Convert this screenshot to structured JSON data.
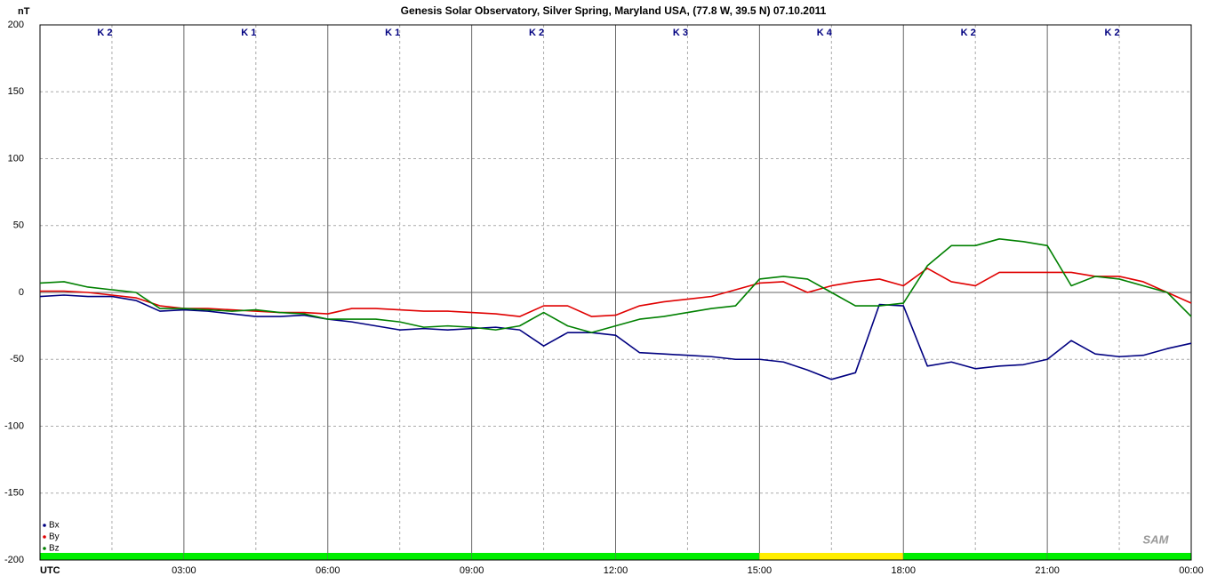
{
  "chart_data": {
    "type": "line",
    "title": "Genesis Solar Observatory, Silver Spring, Maryland USA, (77.8 W, 39.5 N)  07.10.2011",
    "y_label": "nT",
    "logo": "SAM",
    "x": [
      0,
      0.5,
      1,
      1.5,
      2,
      2.5,
      3,
      3.5,
      4,
      4.5,
      5,
      5.5,
      6,
      6.5,
      7,
      7.5,
      8,
      8.5,
      9,
      9.5,
      10,
      10.5,
      11,
      11.5,
      12,
      12.5,
      13,
      13.5,
      14,
      14.5,
      15,
      15.5,
      16,
      16.5,
      17,
      17.5,
      18,
      18.5,
      19,
      19.5,
      20,
      20.5,
      21,
      21.5,
      22,
      22.5,
      23,
      23.5,
      24
    ],
    "xlim": [
      0,
      24
    ],
    "xticks": [
      {
        "value": 0,
        "label": "UTC"
      },
      {
        "value": 3,
        "label": "03:00"
      },
      {
        "value": 6,
        "label": "06:00"
      },
      {
        "value": 9,
        "label": "09:00"
      },
      {
        "value": 12,
        "label": "12:00"
      },
      {
        "value": 15,
        "label": "15:00"
      },
      {
        "value": 18,
        "label": "18:00"
      },
      {
        "value": 21,
        "label": "21:00"
      },
      {
        "value": 24,
        "label": "00:00"
      }
    ],
    "ylim": [
      -200,
      200
    ],
    "yticks": [
      -200,
      -150,
      -100,
      -50,
      0,
      50,
      100,
      150,
      200
    ],
    "grid": true,
    "legend": "lower left",
    "series": [
      {
        "name": "Bx",
        "color": "#000080",
        "values": [
          -3,
          -2,
          -3,
          -3,
          -6,
          -14,
          -13,
          -14,
          -16,
          -18,
          -18,
          -17,
          -20,
          -22,
          -25,
          -28,
          -27,
          -28,
          -27,
          -26,
          -28,
          -40,
          -30,
          -30,
          -32,
          -45,
          -46,
          -47,
          -48,
          -50,
          -50,
          -52,
          -58,
          -65,
          -60,
          -9,
          -10,
          -55,
          -52,
          -57,
          -55,
          -54,
          -50,
          -36,
          -46,
          -48,
          -47,
          -42,
          -38
        ]
      },
      {
        "name": "By",
        "color": "#e00000",
        "values": [
          1,
          1,
          0,
          -2,
          -4,
          -10,
          -12,
          -12,
          -13,
          -14,
          -15,
          -15,
          -16,
          -12,
          -12,
          -13,
          -14,
          -14,
          -15,
          -16,
          -18,
          -10,
          -10,
          -18,
          -17,
          -10,
          -7,
          -5,
          -3,
          2,
          7,
          8,
          0,
          5,
          8,
          10,
          5,
          18,
          8,
          5,
          15,
          15,
          15,
          15,
          12,
          12,
          8,
          0,
          -8
        ]
      },
      {
        "name": "Bz",
        "color": "#008000",
        "values": [
          7,
          8,
          4,
          2,
          0,
          -12,
          -12,
          -13,
          -14,
          -13,
          -15,
          -16,
          -20,
          -20,
          -20,
          -22,
          -26,
          -25,
          -26,
          -28,
          -25,
          -15,
          -25,
          -30,
          -25,
          -20,
          -18,
          -15,
          -12,
          -10,
          10,
          12,
          10,
          0,
          -10,
          -10,
          -8,
          20,
          35,
          35,
          40,
          38,
          35,
          5,
          12,
          10,
          5,
          0,
          -18
        ]
      }
    ],
    "k_index": {
      "values": [
        2,
        1,
        1,
        2,
        3,
        4,
        2,
        2
      ],
      "value_labels": [
        "K 2",
        "K 1",
        "K 1",
        "K 2",
        "K 3",
        "K 4",
        "K 2",
        "K 2"
      ],
      "colors": [
        "#00ee00",
        "#00ee00",
        "#00ee00",
        "#00ee00",
        "#00ee00",
        "#ffee00",
        "#00ee00",
        "#00ee00"
      ]
    }
  }
}
